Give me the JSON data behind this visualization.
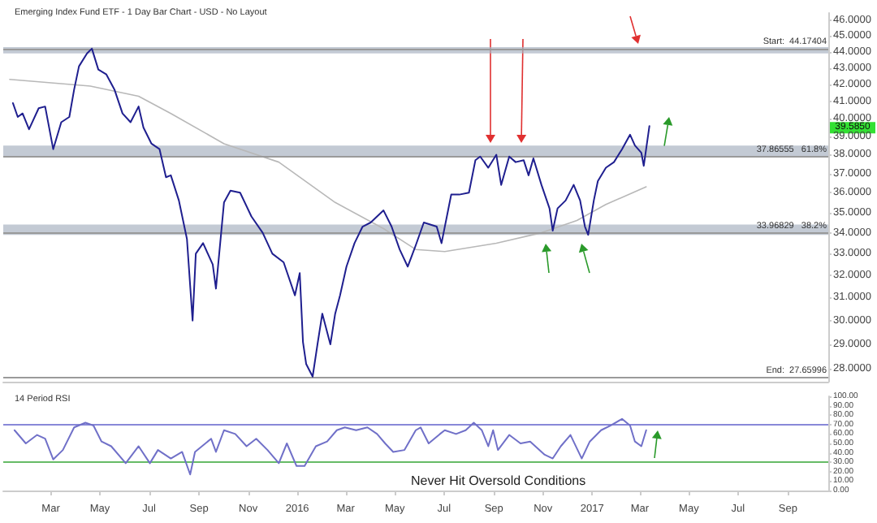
{
  "chart_data": [
    {
      "type": "line",
      "title": "Emerging Index Fund ETF - 1 Day Bar Chart - USD - No Layout",
      "log": "y",
      "grid": false,
      "marker": "none",
      "line_style": "solid",
      "tick_labels": "y",
      "xlim": [
        "2015-01-01",
        "2017-10-21"
      ],
      "ylim": [
        27.5,
        46.5
      ],
      "yticks": [
        {
          "value": 28,
          "label": "28.0000"
        },
        {
          "value": 29,
          "label": "29.0000"
        },
        {
          "value": 30,
          "label": "30.0000"
        },
        {
          "value": 31,
          "label": "31.0000"
        },
        {
          "value": 32,
          "label": "32.0000"
        },
        {
          "value": 33,
          "label": "33.0000"
        },
        {
          "value": 34,
          "label": "34.0000"
        },
        {
          "value": 35,
          "label": "35.0000"
        },
        {
          "value": 36,
          "label": "36.0000"
        },
        {
          "value": 37,
          "label": "37.0000"
        },
        {
          "value": 38,
          "label": "38.0000"
        },
        {
          "value": 39,
          "label": "39.0000"
        },
        {
          "value": 40,
          "label": "40.0000"
        },
        {
          "value": 41,
          "label": "41.0000"
        },
        {
          "value": 42,
          "label": "42.0000"
        },
        {
          "value": 43,
          "label": "43.0000"
        },
        {
          "value": 44,
          "label": "44.0000"
        },
        {
          "value": 45,
          "label": "45.0000"
        },
        {
          "value": 46,
          "label": "46.0000"
        }
      ],
      "series": [
        {
          "color": "#1f1f8f",
          "x": [
            "2015-01-13",
            "2015-01-19",
            "2015-01-25",
            "2015-02-02",
            "2015-02-14",
            "2015-02-22",
            "2015-03-04",
            "2015-03-14",
            "2015-03-24",
            "2015-03-30",
            "2015-04-05",
            "2015-04-15",
            "2015-04-21",
            "2015-04-29",
            "2015-05-09",
            "2015-05-19",
            "2015-05-29",
            "2015-06-08",
            "2015-06-18",
            "2015-06-24",
            "2015-07-04",
            "2015-07-14",
            "2015-07-22",
            "2015-07-28",
            "2015-08-07",
            "2015-08-17",
            "2015-08-24",
            "2015-08-28",
            "2015-09-06",
            "2015-09-18",
            "2015-09-22",
            "2015-10-02",
            "2015-10-10",
            "2015-10-22",
            "2015-11-05",
            "2015-11-19",
            "2015-12-01",
            "2015-12-15",
            "2015-12-29",
            "2016-01-04",
            "2016-01-08",
            "2016-01-12",
            "2016-01-20",
            "2016-01-26",
            "2016-02-01",
            "2016-02-11",
            "2016-02-17",
            "2016-02-23",
            "2016-03-02",
            "2016-03-12",
            "2016-03-22",
            "2016-04-01",
            "2016-04-17",
            "2016-04-27",
            "2016-05-07",
            "2016-05-17",
            "2016-05-27",
            "2016-06-06",
            "2016-06-22",
            "2016-06-28",
            "2016-07-10",
            "2016-07-20",
            "2016-08-01",
            "2016-08-09",
            "2016-08-15",
            "2016-08-25",
            "2016-09-04",
            "2016-09-10",
            "2016-09-20",
            "2016-09-28",
            "2016-10-08",
            "2016-10-14",
            "2016-10-20",
            "2016-10-30",
            "2016-11-09",
            "2016-11-13",
            "2016-11-19",
            "2016-11-29",
            "2016-12-09",
            "2016-12-17",
            "2016-12-23",
            "2016-12-27",
            "2017-01-03",
            "2017-01-08",
            "2017-01-18",
            "2017-01-28",
            "2017-02-07",
            "2017-02-17",
            "2017-02-23",
            "2017-03-03",
            "2017-03-06",
            "2017-03-13"
          ],
          "values": [
            40.9,
            40.1,
            40.3,
            39.4,
            40.6,
            40.7,
            38.3,
            39.8,
            40.1,
            41.7,
            43.1,
            43.9,
            44.2,
            42.9,
            42.6,
            41.7,
            40.3,
            39.8,
            40.7,
            39.5,
            38.6,
            38.3,
            36.8,
            36.9,
            35.6,
            33.7,
            30.0,
            33.0,
            33.5,
            32.5,
            31.4,
            35.5,
            36.1,
            36.0,
            34.8,
            34.0,
            33.0,
            32.6,
            31.1,
            32.1,
            29.1,
            28.2,
            27.7,
            29.0,
            30.3,
            29.0,
            30.3,
            31.1,
            32.4,
            33.5,
            34.3,
            34.5,
            35.1,
            34.3,
            33.2,
            32.4,
            33.4,
            34.5,
            34.3,
            33.5,
            35.9,
            35.9,
            36.0,
            37.7,
            37.9,
            37.3,
            38.0,
            36.4,
            37.9,
            37.6,
            37.7,
            36.9,
            37.8,
            36.4,
            35.2,
            34.1,
            35.2,
            35.6,
            36.4,
            35.6,
            34.3,
            33.9,
            35.6,
            36.6,
            37.3,
            37.6,
            38.3,
            39.1,
            38.5,
            38.1,
            37.4,
            39.585
          ]
        },
        {
          "color": "#b8b8b8",
          "x": [
            "2015-01-09",
            "2015-04-19",
            "2015-06-18",
            "2015-07-28",
            "2015-10-02",
            "2015-12-09",
            "2016-02-17",
            "2016-04-17",
            "2016-05-27",
            "2016-07-02",
            "2016-09-04",
            "2016-10-30",
            "2016-12-13",
            "2017-01-18",
            "2017-03-09"
          ],
          "values": [
            42.3,
            41.9,
            41.3,
            40.3,
            38.6,
            37.6,
            35.5,
            34.2,
            33.2,
            33.1,
            33.5,
            34.0,
            34.6,
            35.4,
            36.3
          ]
        }
      ],
      "ref_lines": [
        {
          "axis": "y",
          "value": 44.17404,
          "label": "Start:  44.17404",
          "color": "#9a9a9a"
        },
        {
          "axis": "y",
          "value": 37.86555,
          "label": "37.86555   61.8%",
          "color": "#9a9a9a"
        },
        {
          "axis": "y",
          "value": 33.96829,
          "label": "33.96829   38.2%",
          "color": "#9a9a9a"
        },
        {
          "axis": "y",
          "value": 27.65996,
          "label": "End:  27.65996",
          "color": "#9a9a9a"
        }
      ],
      "bands": [
        {
          "axis": "y",
          "from": 43.9,
          "to": 44.3,
          "color": "#aab4c2"
        },
        {
          "axis": "y",
          "from": 37.9,
          "to": 38.5,
          "color": "#aab4c2"
        },
        {
          "axis": "y",
          "from": 33.9,
          "to": 34.4,
          "color": "#aab4c2"
        }
      ],
      "annotations": [
        "39.5850"
      ]
    },
    {
      "type": "line",
      "title": "14 Period RSI",
      "grid": false,
      "marker": "none",
      "line_style": "solid",
      "xlim": [
        "2015-01-01",
        "2017-10-21"
      ],
      "xticks": [
        {
          "value": "2015-03-01",
          "label": "Mar"
        },
        {
          "value": "2015-05-01",
          "label": "May"
        },
        {
          "value": "2015-07-01",
          "label": "Jul"
        },
        {
          "value": "2015-09-01",
          "label": "Sep"
        },
        {
          "value": "2015-11-01",
          "label": "Nov"
        },
        {
          "value": "2016-01-01",
          "label": "2016"
        },
        {
          "value": "2016-03-01",
          "label": "Mar"
        },
        {
          "value": "2016-05-01",
          "label": "May"
        },
        {
          "value": "2016-07-01",
          "label": "Jul"
        },
        {
          "value": "2016-09-01",
          "label": "Sep"
        },
        {
          "value": "2016-11-01",
          "label": "Nov"
        },
        {
          "value": "2017-01-01",
          "label": "2017"
        },
        {
          "value": "2017-03-01",
          "label": "Mar"
        },
        {
          "value": "2017-05-01",
          "label": "May"
        },
        {
          "value": "2017-07-01",
          "label": "Jul"
        },
        {
          "value": "2017-09-01",
          "label": "Sep"
        }
      ],
      "ylim": [
        0,
        100
      ],
      "yticks": [
        {
          "value": 0,
          "label": "0.00"
        },
        {
          "value": 10,
          "label": "10.00"
        },
        {
          "value": 20,
          "label": "20.00"
        },
        {
          "value": 30,
          "label": "30.00"
        },
        {
          "value": 40,
          "label": "40.00"
        },
        {
          "value": 50,
          "label": "50.00"
        },
        {
          "value": 60,
          "label": "60.00"
        },
        {
          "value": 70,
          "label": "70.00"
        },
        {
          "value": 80,
          "label": "80.00"
        },
        {
          "value": 90,
          "label": "90.00"
        },
        {
          "value": 100,
          "label": "100.00"
        }
      ],
      "series": [
        {
          "color": "#7070c8",
          "x": [
            "2015-01-15",
            "2015-01-29",
            "2015-02-12",
            "2015-02-22",
            "2015-03-04",
            "2015-03-16",
            "2015-03-30",
            "2015-04-13",
            "2015-04-23",
            "2015-05-03",
            "2015-05-15",
            "2015-06-02",
            "2015-06-18",
            "2015-07-02",
            "2015-07-12",
            "2015-07-28",
            "2015-08-11",
            "2015-08-21",
            "2015-08-27",
            "2015-09-16",
            "2015-09-22",
            "2015-10-02",
            "2015-10-16",
            "2015-10-30",
            "2015-11-11",
            "2015-11-25",
            "2015-12-09",
            "2015-12-19",
            "2015-12-31",
            "2016-01-10",
            "2016-01-24",
            "2016-02-07",
            "2016-02-19",
            "2016-02-29",
            "2016-03-14",
            "2016-03-28",
            "2016-04-09",
            "2016-04-19",
            "2016-04-29",
            "2016-05-13",
            "2016-05-27",
            "2016-06-02",
            "2016-06-12",
            "2016-06-26",
            "2016-07-02",
            "2016-07-16",
            "2016-07-28",
            "2016-08-07",
            "2016-08-17",
            "2016-08-25",
            "2016-08-31",
            "2016-09-06",
            "2016-09-20",
            "2016-10-04",
            "2016-10-16",
            "2016-11-03",
            "2016-11-13",
            "2016-11-23",
            "2016-12-05",
            "2016-12-19",
            "2016-12-29",
            "2017-01-12",
            "2017-01-24",
            "2017-02-07",
            "2017-02-17",
            "2017-02-23",
            "2017-03-03",
            "2017-03-09"
          ],
          "values": [
            64,
            50,
            59,
            55,
            33,
            43,
            67,
            72,
            69,
            52,
            47,
            29,
            47,
            29,
            43,
            34,
            41,
            17,
            41,
            55,
            41,
            64,
            60,
            47,
            55,
            43,
            29,
            50,
            26,
            26,
            47,
            52,
            64,
            67,
            64,
            67,
            60,
            50,
            41,
            43,
            64,
            67,
            50,
            60,
            64,
            60,
            64,
            72,
            64,
            47,
            64,
            43,
            59,
            50,
            52,
            38,
            34,
            47,
            59,
            34,
            52,
            64,
            69,
            76,
            69,
            52,
            47,
            64
          ]
        }
      ],
      "ref_lines": [
        {
          "axis": "y",
          "value": 70,
          "color": "#8888d8"
        },
        {
          "axis": "y",
          "value": 30,
          "color": "#66bb66"
        }
      ],
      "annotations": [
        "Never Hit Oversold Conditions"
      ]
    }
  ]
}
